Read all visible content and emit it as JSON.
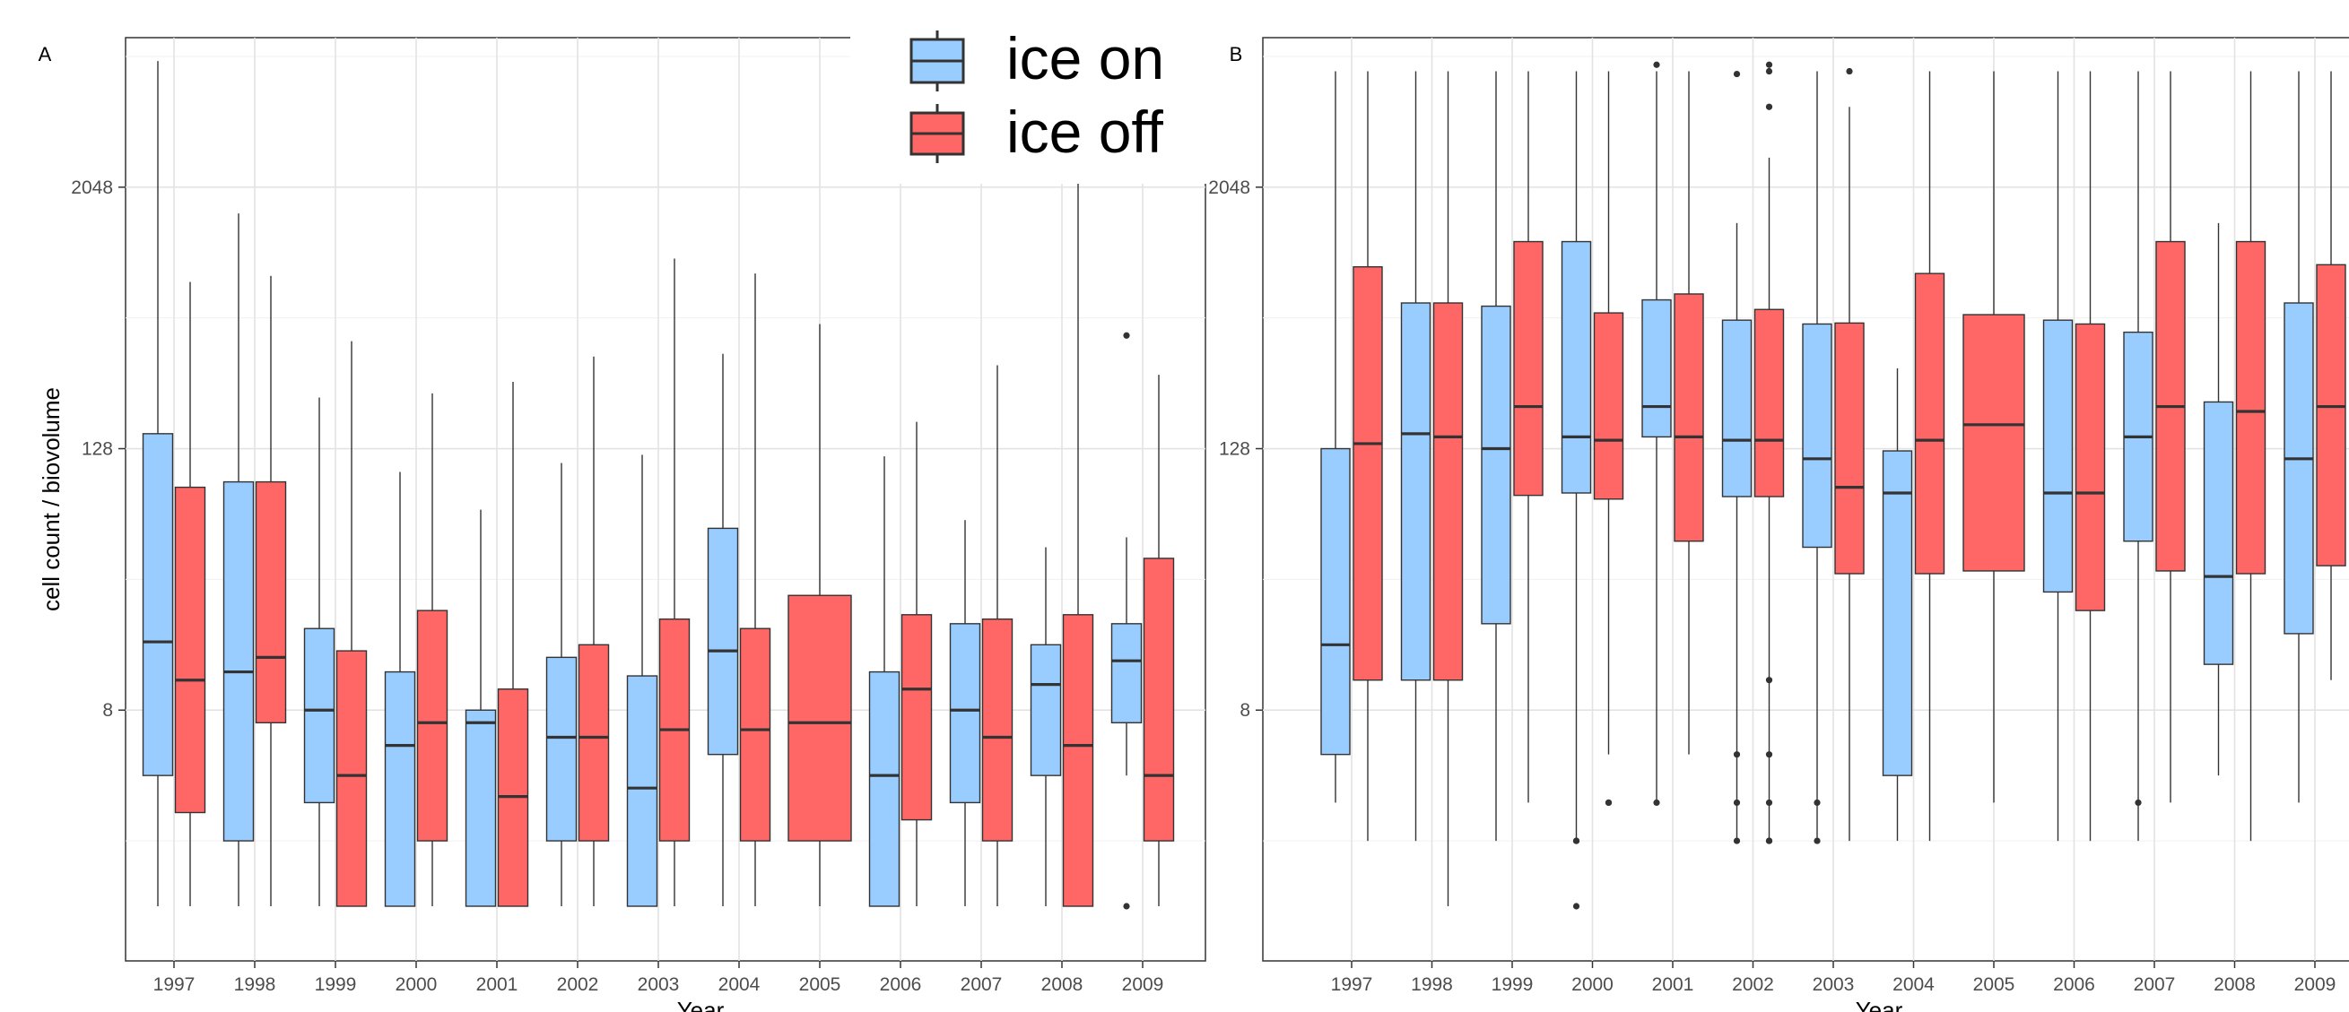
{
  "legend": {
    "entries": [
      {
        "label": "ice on",
        "color": "#99CCFF"
      },
      {
        "label": "ice off",
        "color": "#FF6666"
      }
    ],
    "placement": "top-center"
  },
  "chart_data": [
    {
      "type": "box",
      "panel_label": "A",
      "xlabel": "Year",
      "ylabel": "cell count / biovolume",
      "y_scale": "log2",
      "ylim": [
        0.56,
        10000
      ],
      "yticks": [
        8,
        128,
        2048
      ],
      "grid": true,
      "categories": [
        "1997",
        "1998",
        "1999",
        "2000",
        "2001",
        "2002",
        "2003",
        "2004",
        "2005",
        "2006",
        "2007",
        "2008",
        "2009"
      ],
      "series": [
        {
          "name": "ice on",
          "color": "#99CCFF",
          "boxes": [
            {
              "x": "1997",
              "low": 1,
              "q1": 4,
              "median": 16.5,
              "q3": 150,
              "high": 7800,
              "outliers": []
            },
            {
              "x": "1998",
              "low": 1,
              "q1": 2,
              "median": 12,
              "q3": 90,
              "high": 1550,
              "outliers": []
            },
            {
              "x": "1999",
              "low": 1,
              "q1": 3,
              "median": 8,
              "q3": 19,
              "high": 220,
              "outliers": []
            },
            {
              "x": "2000",
              "low": 1,
              "q1": 1,
              "median": 5.5,
              "q3": 12,
              "high": 100,
              "outliers": []
            },
            {
              "x": "2001",
              "low": 1,
              "q1": 1,
              "median": 7,
              "q3": 8,
              "high": 67,
              "outliers": []
            },
            {
              "x": "2002",
              "low": 1,
              "q1": 2,
              "median": 6,
              "q3": 14,
              "high": 110,
              "outliers": []
            },
            {
              "x": "2003",
              "low": 1,
              "q1": 1,
              "median": 3.5,
              "q3": 11.5,
              "high": 120,
              "outliers": []
            },
            {
              "x": "2004",
              "low": 1,
              "q1": 5,
              "median": 15,
              "q3": 55,
              "high": 350,
              "outliers": []
            },
            {
              "x": "2006",
              "low": 1,
              "q1": 1,
              "median": 4,
              "q3": 12,
              "high": 118,
              "outliers": []
            },
            {
              "x": "2007",
              "low": 1,
              "q1": 3,
              "median": 8,
              "q3": 20,
              "high": 60,
              "outliers": []
            },
            {
              "x": "2008",
              "low": 1,
              "q1": 4,
              "median": 10.5,
              "q3": 16,
              "high": 45,
              "outliers": []
            },
            {
              "x": "2009",
              "low": 4,
              "q1": 7,
              "median": 13.5,
              "q3": 20,
              "high": 50,
              "outliers": [
                1,
                425
              ]
            }
          ]
        },
        {
          "name": "ice off",
          "color": "#FF6666",
          "boxes": [
            {
              "x": "1997",
              "low": 1,
              "q1": 2.7,
              "median": 11,
              "q3": 85,
              "high": 750,
              "outliers": []
            },
            {
              "x": "1998",
              "low": 1,
              "q1": 7,
              "median": 14,
              "q3": 90,
              "high": 800,
              "outliers": []
            },
            {
              "x": "1999",
              "low": 1,
              "q1": 1,
              "median": 4,
              "q3": 15,
              "high": 400,
              "outliers": []
            },
            {
              "x": "2000",
              "low": 1,
              "q1": 2,
              "median": 7,
              "q3": 23,
              "high": 230,
              "outliers": []
            },
            {
              "x": "2001",
              "low": 1,
              "q1": 1,
              "median": 3.2,
              "q3": 10,
              "high": 260,
              "outliers": []
            },
            {
              "x": "2002",
              "low": 1,
              "q1": 2,
              "median": 6,
              "q3": 16,
              "high": 340,
              "outliers": []
            },
            {
              "x": "2003",
              "low": 1,
              "q1": 2,
              "median": 6.5,
              "q3": 21,
              "high": 960,
              "outliers": []
            },
            {
              "x": "2004",
              "low": 1,
              "q1": 2,
              "median": 6.5,
              "q3": 19,
              "high": 820,
              "outliers": []
            },
            {
              "x": "2005",
              "low": 1,
              "q1": 2,
              "median": 7,
              "q3": 27,
              "high": 480,
              "outliers": []
            },
            {
              "x": "2006",
              "low": 1,
              "q1": 2.5,
              "median": 10,
              "q3": 22,
              "high": 170,
              "outliers": []
            },
            {
              "x": "2007",
              "low": 1,
              "q1": 2,
              "median": 6,
              "q3": 21,
              "high": 310,
              "outliers": []
            },
            {
              "x": "2008",
              "low": 1,
              "q1": 1,
              "median": 5.5,
              "q3": 22,
              "high": 5000,
              "outliers": []
            },
            {
              "x": "2009",
              "low": 1,
              "q1": 2,
              "median": 4,
              "q3": 40,
              "high": 280,
              "outliers": []
            }
          ]
        }
      ]
    },
    {
      "type": "box",
      "panel_label": "B",
      "xlabel": "Year",
      "ylabel": "",
      "y_scale": "log2",
      "ylim": [
        0.56,
        10000
      ],
      "yticks": [
        8,
        128,
        2048
      ],
      "grid": true,
      "categories": [
        "1997",
        "1998",
        "1999",
        "2000",
        "2001",
        "2002",
        "2003",
        "2004",
        "2005",
        "2006",
        "2007",
        "2008",
        "2009"
      ],
      "series": [
        {
          "name": "ice on",
          "color": "#99CCFF",
          "boxes": [
            {
              "x": "1997",
              "low": 3,
              "q1": 5,
              "median": 16,
              "q3": 128,
              "high": 7000,
              "outliers": []
            },
            {
              "x": "1998",
              "low": 2,
              "q1": 11,
              "median": 150,
              "q3": 600,
              "high": 7000,
              "outliers": []
            },
            {
              "x": "1999",
              "low": 2,
              "q1": 20,
              "median": 128,
              "q3": 580,
              "high": 7000,
              "outliers": []
            },
            {
              "x": "2000",
              "low": 2,
              "q1": 80,
              "median": 145,
              "q3": 1150,
              "high": 7000,
              "outliers": [
                1,
                2,
                2
              ]
            },
            {
              "x": "2001",
              "low": 3,
              "q1": 145,
              "median": 200,
              "q3": 620,
              "high": 7000,
              "outliers": [
                3,
                7500
              ]
            },
            {
              "x": "2002",
              "low": 2,
              "q1": 77,
              "median": 140,
              "q3": 500,
              "high": 1400,
              "outliers": [
                2,
                3,
                5,
                6800
              ]
            },
            {
              "x": "2003",
              "low": 2,
              "q1": 45,
              "median": 115,
              "q3": 480,
              "high": 7000,
              "outliers": [
                3,
                2
              ]
            },
            {
              "x": "2004",
              "low": 2,
              "q1": 4,
              "median": 80,
              "q3": 125,
              "high": 300,
              "outliers": []
            },
            {
              "x": "2006",
              "low": 2,
              "q1": 28,
              "median": 80,
              "q3": 500,
              "high": 7000,
              "outliers": []
            },
            {
              "x": "2007",
              "low": 2,
              "q1": 48,
              "median": 145,
              "q3": 440,
              "high": 7000,
              "outliers": [
                3
              ]
            },
            {
              "x": "2008",
              "low": 4,
              "q1": 13,
              "median": 33,
              "q3": 210,
              "high": 1400,
              "outliers": []
            },
            {
              "x": "2009",
              "low": 3,
              "q1": 18,
              "median": 115,
              "q3": 600,
              "high": 7000,
              "outliers": []
            }
          ]
        },
        {
          "name": "ice off",
          "color": "#FF6666",
          "boxes": [
            {
              "x": "1997",
              "low": 2,
              "q1": 11,
              "median": 135,
              "q3": 880,
              "high": 7000,
              "outliers": []
            },
            {
              "x": "1998",
              "low": 1,
              "q1": 11,
              "median": 145,
              "q3": 600,
              "high": 7000,
              "outliers": []
            },
            {
              "x": "1999",
              "low": 3,
              "q1": 78,
              "median": 200,
              "q3": 1150,
              "high": 7000,
              "outliers": []
            },
            {
              "x": "2000",
              "low": 5,
              "q1": 75,
              "median": 140,
              "q3": 540,
              "high": 7000,
              "outliers": [
                3,
                3
              ]
            },
            {
              "x": "2001",
              "low": 5,
              "q1": 48,
              "median": 145,
              "q3": 660,
              "high": 7000,
              "outliers": []
            },
            {
              "x": "2002",
              "low": 2,
              "q1": 77,
              "median": 140,
              "q3": 560,
              "high": 2800,
              "outliers": [
                2,
                2,
                3,
                5,
                11,
                4800,
                7000,
                7500
              ]
            },
            {
              "x": "2003",
              "low": 2,
              "q1": 34,
              "median": 85,
              "q3": 485,
              "high": 4800,
              "outliers": [
                7000
              ]
            },
            {
              "x": "2004",
              "low": 2,
              "q1": 34,
              "median": 140,
              "q3": 820,
              "high": 7000,
              "outliers": []
            },
            {
              "x": "2005",
              "low": 3,
              "q1": 35,
              "median": 165,
              "q3": 530,
              "high": 7000,
              "outliers": []
            },
            {
              "x": "2006",
              "low": 2,
              "q1": 23,
              "median": 80,
              "q3": 480,
              "high": 7000,
              "outliers": []
            },
            {
              "x": "2007",
              "low": 3,
              "q1": 35,
              "median": 200,
              "q3": 1150,
              "high": 7000,
              "outliers": []
            },
            {
              "x": "2008",
              "low": 2,
              "q1": 34,
              "median": 190,
              "q3": 1150,
              "high": 7000,
              "outliers": []
            },
            {
              "x": "2009",
              "low": 11,
              "q1": 37,
              "median": 200,
              "q3": 900,
              "high": 7000,
              "outliers": []
            }
          ]
        }
      ]
    }
  ]
}
